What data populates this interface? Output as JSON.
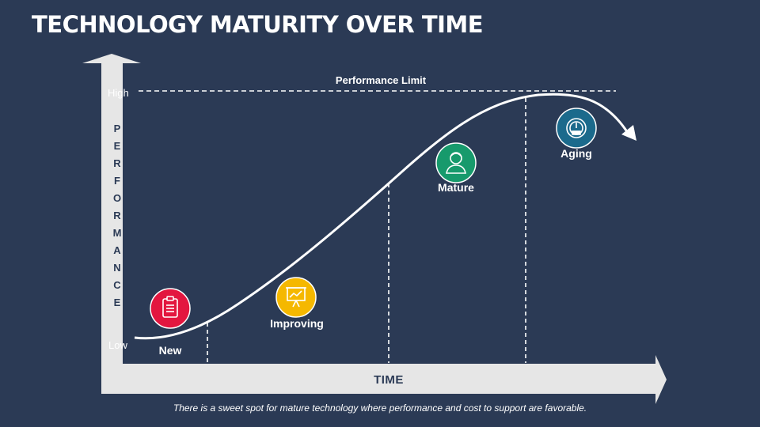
{
  "title": "TECHNOLOGY MATURITY OVER TIME",
  "performance_limit_label": "Performance Limit",
  "y_axis": {
    "label_letters": [
      "P",
      "E",
      "R",
      "F",
      "O",
      "R",
      "M",
      "A",
      "N",
      "C",
      "E"
    ],
    "high_label": "High",
    "low_label": "Low"
  },
  "x_axis": {
    "label": "TIME"
  },
  "stages": [
    {
      "label": "New",
      "icon": "clipboard-icon",
      "color": "#e3163f"
    },
    {
      "label": "Improving",
      "icon": "presentation-chart-icon",
      "color": "#f5b800"
    },
    {
      "label": "Mature",
      "icon": "person-icon",
      "color": "#179a6c"
    },
    {
      "label": "Aging",
      "icon": "gauge-icon",
      "color": "#1b6a8c"
    }
  ],
  "footnote": "There is a sweet spot for mature technology where performance and cost to support are favorable.",
  "colors": {
    "background": "#2b3a55",
    "axis": "#e6e6e6",
    "curve": "#ffffff"
  }
}
